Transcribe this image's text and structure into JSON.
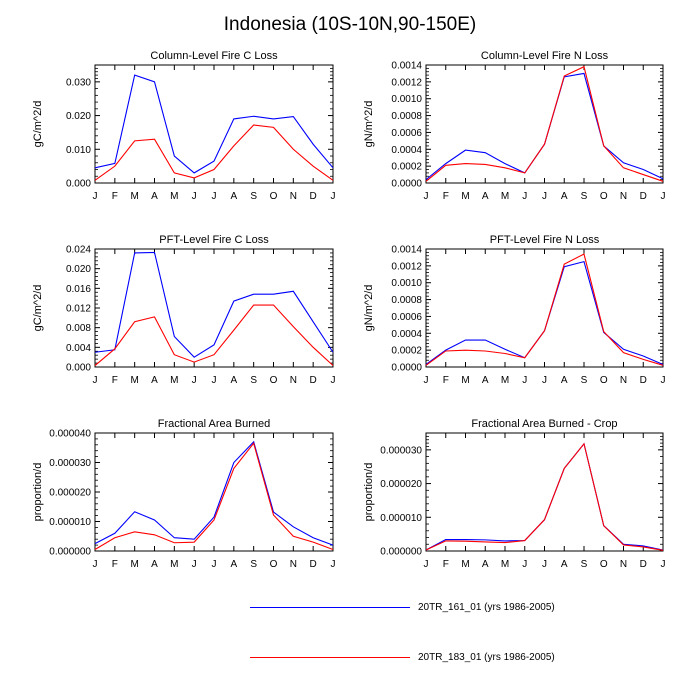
{
  "figure": {
    "title": "Indonesia (10S-10N,90-150E)"
  },
  "legend": [
    {
      "name": "20TR_161_01 (yrs 1986-2005)",
      "color": "#0000ff"
    },
    {
      "name": "20TR_183_01 (yrs 1986-2005)",
      "color": "#ff0000"
    }
  ],
  "chart_data": [
    {
      "type": "line",
      "title": "Column-Level Fire C Loss",
      "ylabel": "gC/m^2/d",
      "xlabel": "",
      "categories": [
        "J",
        "F",
        "M",
        "A",
        "M",
        "J",
        "J",
        "A",
        "S",
        "O",
        "N",
        "D",
        "J"
      ],
      "ylim": [
        0,
        0.035
      ],
      "yticks": [
        0.0,
        0.01,
        0.02,
        0.03
      ],
      "ytick_labels": [
        "0.000",
        "0.010",
        "0.020",
        "0.030"
      ],
      "series": [
        {
          "name": "20TR_161_01 (yrs 1986-2005)",
          "color": "#0000ff",
          "values": [
            0.0045,
            0.0058,
            0.032,
            0.03,
            0.008,
            0.003,
            0.0065,
            0.019,
            0.0198,
            0.019,
            0.0197,
            0.0115,
            0.0045
          ]
        },
        {
          "name": "20TR_183_01 (yrs 1986-2005)",
          "color": "#ff0000",
          "values": [
            0.0008,
            0.005,
            0.0125,
            0.013,
            0.003,
            0.0015,
            0.004,
            0.011,
            0.0172,
            0.0165,
            0.01,
            0.005,
            0.0008
          ]
        }
      ]
    },
    {
      "type": "line",
      "title": "Column-Level Fire N Loss",
      "ylabel": "gN/m^2/d",
      "xlabel": "",
      "categories": [
        "J",
        "F",
        "M",
        "A",
        "M",
        "J",
        "J",
        "A",
        "S",
        "O",
        "N",
        "D",
        "J"
      ],
      "ylim": [
        0,
        0.0014
      ],
      "yticks": [
        0.0,
        0.0002,
        0.0004,
        0.0006,
        0.0008,
        0.001,
        0.0012,
        0.0014
      ],
      "ytick_labels": [
        "0.0000",
        "0.0002",
        "0.0004",
        "0.0006",
        "0.0008",
        "0.0010",
        "0.0012",
        "0.0014"
      ],
      "series": [
        {
          "name": "20TR_161_01 (yrs 1986-2005)",
          "color": "#0000ff",
          "values": [
            4e-05,
            0.00023,
            0.00039,
            0.00036,
            0.00023,
            0.00012,
            0.00046,
            0.00126,
            0.0013,
            0.00044,
            0.00024,
            0.00016,
            5e-05
          ]
        },
        {
          "name": "20TR_183_01 (yrs 1986-2005)",
          "color": "#ff0000",
          "values": [
            2e-05,
            0.00021,
            0.00023,
            0.00022,
            0.00018,
            0.00012,
            0.00046,
            0.00127,
            0.00138,
            0.00044,
            0.00018,
            0.0001,
            2e-05
          ]
        }
      ]
    },
    {
      "type": "line",
      "title": "PFT-Level Fire C Loss",
      "ylabel": "gC/m^2/d",
      "xlabel": "",
      "categories": [
        "J",
        "F",
        "M",
        "A",
        "M",
        "J",
        "J",
        "A",
        "S",
        "O",
        "N",
        "D",
        "J"
      ],
      "ylim": [
        0,
        0.024
      ],
      "yticks": [
        0.0,
        0.004,
        0.008,
        0.012,
        0.016,
        0.02,
        0.024
      ],
      "ytick_labels": [
        "0.000",
        "0.004",
        "0.008",
        "0.012",
        "0.016",
        "0.020",
        "0.024"
      ],
      "series": [
        {
          "name": "20TR_161_01 (yrs 1986-2005)",
          "color": "#0000ff",
          "values": [
            0.003,
            0.0035,
            0.0232,
            0.0233,
            0.0062,
            0.002,
            0.0045,
            0.0134,
            0.0148,
            0.0148,
            0.0154,
            0.0092,
            0.003
          ]
        },
        {
          "name": "20TR_183_01 (yrs 1986-2005)",
          "color": "#ff0000",
          "values": [
            0.0003,
            0.0037,
            0.0092,
            0.0102,
            0.0025,
            0.001,
            0.0025,
            0.0075,
            0.0126,
            0.0126,
            0.0082,
            0.004,
            0.0003
          ]
        }
      ]
    },
    {
      "type": "line",
      "title": "PFT-Level Fire N Loss",
      "ylabel": "gN/m^2/d",
      "xlabel": "",
      "categories": [
        "J",
        "F",
        "M",
        "A",
        "M",
        "J",
        "J",
        "A",
        "S",
        "O",
        "N",
        "D",
        "J"
      ],
      "ylim": [
        0,
        0.0014
      ],
      "yticks": [
        0.0,
        0.0002,
        0.0004,
        0.0006,
        0.0008,
        0.001,
        0.0012,
        0.0014
      ],
      "ytick_labels": [
        "0.0000",
        "0.0002",
        "0.0004",
        "0.0006",
        "0.0008",
        "0.0010",
        "0.0012",
        "0.0014"
      ],
      "series": [
        {
          "name": "20TR_161_01 (yrs 1986-2005)",
          "color": "#0000ff",
          "values": [
            3e-05,
            0.0002,
            0.00032,
            0.00032,
            0.00021,
            0.00011,
            0.00043,
            0.00119,
            0.00125,
            0.00041,
            0.00021,
            0.00013,
            3e-05
          ]
        },
        {
          "name": "20TR_183_01 (yrs 1986-2005)",
          "color": "#ff0000",
          "values": [
            2e-05,
            0.00019,
            0.0002,
            0.00019,
            0.00016,
            0.00011,
            0.00043,
            0.00122,
            0.00134,
            0.00042,
            0.00017,
            9e-05,
            2e-05
          ]
        }
      ]
    },
    {
      "type": "line",
      "title": "Fractional Area Burned",
      "ylabel": "proportion/d",
      "xlabel": "",
      "categories": [
        "J",
        "F",
        "M",
        "A",
        "M",
        "J",
        "J",
        "A",
        "S",
        "O",
        "N",
        "D",
        "J"
      ],
      "ylim": [
        0,
        4e-05
      ],
      "yticks": [
        0.0,
        1e-05,
        2e-05,
        3e-05,
        4e-05
      ],
      "ytick_labels": [
        "0.000000",
        "0.000010",
        "0.000020",
        "0.000030",
        "0.000040"
      ],
      "series": [
        {
          "name": "20TR_161_01 (yrs 1986-2005)",
          "color": "#0000ff",
          "values": [
            2.5e-06,
            6e-06,
            1.33e-05,
            1.05e-05,
            4.5e-06,
            4e-06,
            1.15e-05,
            3e-05,
            3.7e-05,
            1.32e-05,
            8.2e-06,
            4.5e-06,
            2e-06
          ]
        },
        {
          "name": "20TR_183_01 (yrs 1986-2005)",
          "color": "#ff0000",
          "values": [
            5e-07,
            4.5e-06,
            6.5e-06,
            5.5e-06,
            2.8e-06,
            3e-06,
            1.05e-05,
            2.8e-05,
            3.65e-05,
            1.22e-05,
            5e-06,
            3e-06,
            5e-07
          ]
        }
      ]
    },
    {
      "type": "line",
      "title": "Fractional Area Burned - Crop",
      "ylabel": "proportion/d",
      "xlabel": "",
      "categories": [
        "J",
        "F",
        "M",
        "A",
        "M",
        "J",
        "J",
        "A",
        "S",
        "O",
        "N",
        "D",
        "J"
      ],
      "ylim": [
        0,
        3.5e-05
      ],
      "yticks": [
        0.0,
        1e-05,
        2e-05,
        3e-05
      ],
      "ytick_labels": [
        "0.000000",
        "0.000010",
        "0.000020",
        "0.000030"
      ],
      "series": [
        {
          "name": "20TR_161_01 (yrs 1986-2005)",
          "color": "#0000ff",
          "values": [
            3e-07,
            3.4e-06,
            3.4e-06,
            3.3e-06,
            3e-06,
            3.1e-06,
            9.3e-06,
            2.45e-05,
            3.18e-05,
            7.5e-06,
            2e-06,
            1.5e-06,
            3e-07
          ]
        },
        {
          "name": "20TR_183_01 (yrs 1986-2005)",
          "color": "#ff0000",
          "values": [
            3e-07,
            3e-06,
            2.9e-06,
            2.7e-06,
            2.5e-06,
            3.1e-06,
            9.3e-06,
            2.45e-05,
            3.18e-05,
            7.5e-06,
            1.8e-06,
            1.2e-06,
            2e-07
          ]
        }
      ]
    }
  ]
}
